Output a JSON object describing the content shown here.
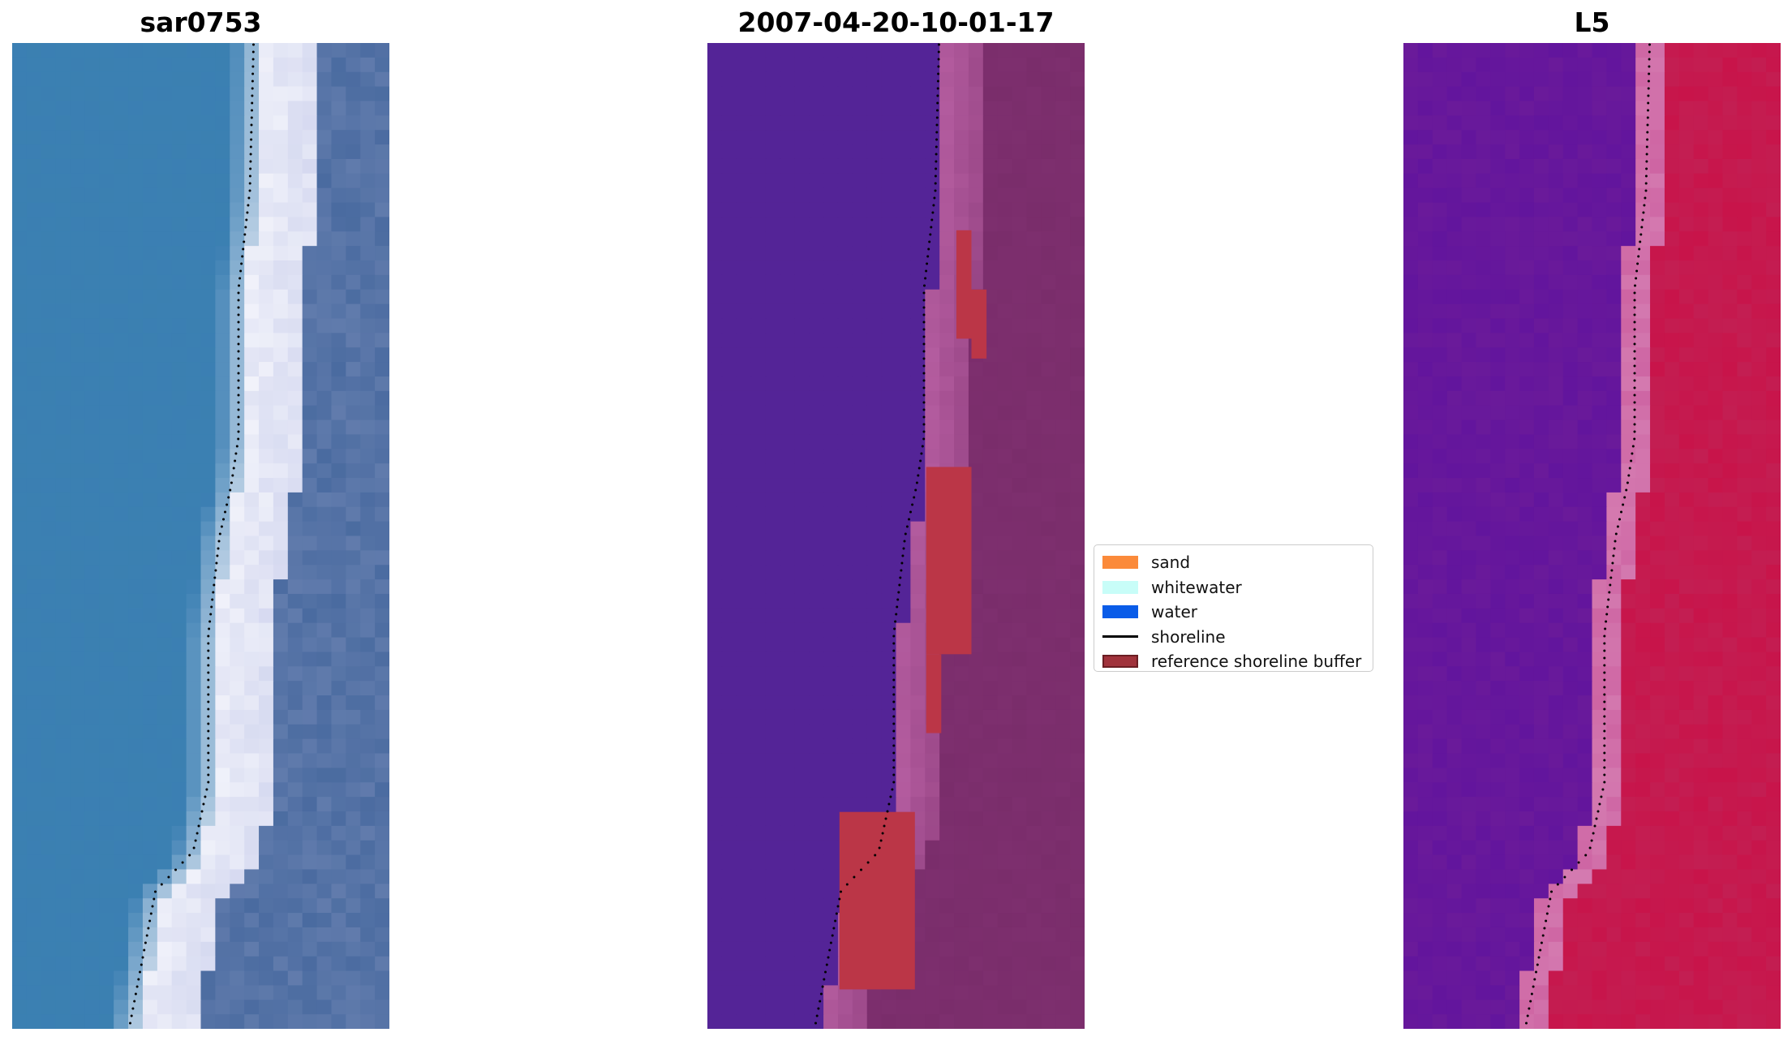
{
  "panels": [
    {
      "title": "sar0753"
    },
    {
      "title": "2007-04-20-10-01-17"
    },
    {
      "title": "L5"
    }
  ],
  "legend": {
    "items": [
      {
        "label": "sand",
        "kind": "patch",
        "color": "#fb8a3a"
      },
      {
        "label": "whitewater",
        "kind": "patch",
        "color": "#c8fdf8"
      },
      {
        "label": "water",
        "kind": "patch",
        "color": "#0a5ce8"
      },
      {
        "label": "shoreline",
        "kind": "line",
        "color": "#000000"
      },
      {
        "label": "reference shoreline buffer",
        "kind": "patch",
        "color": "#a0323b",
        "edge": "#6a1d22"
      }
    ]
  },
  "colors": {
    "rgb_water": "#3b7fb3",
    "rgb_surf": "#f3f4fb",
    "rgb_land": "#4a6ba0",
    "class_water": "#542497",
    "class_land_edge": "#b55da0",
    "class_land": "#7a2d6b",
    "buffer": "#bb3647",
    "index_water": "#6a1a9a",
    "index_land": "#c8144a",
    "index_edge": "#d47ab0"
  }
}
